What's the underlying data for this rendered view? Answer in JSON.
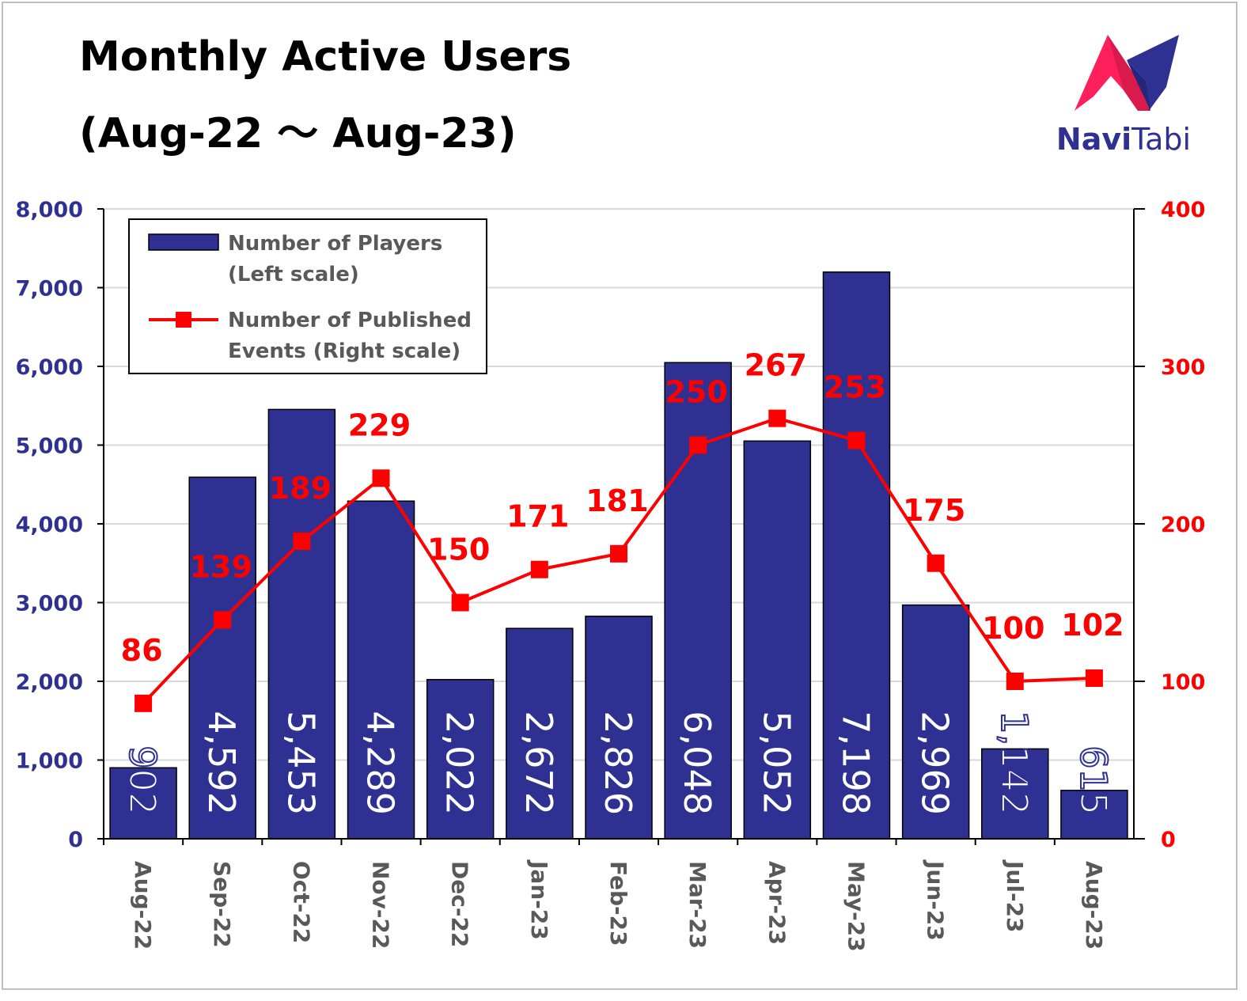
{
  "header": {
    "title_line1": "Monthly Active Users",
    "title_line2": "(Aug-22 ～ Aug-23)"
  },
  "logo": {
    "brand_part1": "Navi",
    "brand_part2": "Tabi",
    "colors": {
      "left": "#ff1f5a",
      "right": "#2e3192"
    }
  },
  "chart_data": {
    "type": "bar",
    "categories": [
      "Aug-22",
      "Sep-22",
      "Oct-22",
      "Nov-22",
      "Dec-22",
      "Jan-23",
      "Feb-23",
      "Mar-23",
      "Apr-23",
      "May-23",
      "Jun-23",
      "Jul-23",
      "Aug-23"
    ],
    "series": [
      {
        "name": "Number of Players (Left scale)",
        "type": "bar",
        "axis": "left",
        "color": "#2e3192",
        "values": [
          902,
          4592,
          5453,
          4289,
          2022,
          2672,
          2826,
          6048,
          5052,
          7198,
          2969,
          1142,
          615
        ],
        "labels": [
          "902",
          "4,592",
          "5,453",
          "4,289",
          "2,022",
          "2,672",
          "2,826",
          "6,048",
          "5,052",
          "7,198",
          "2,969",
          "1,142",
          "615"
        ]
      },
      {
        "name": "Number of Published Events (Right scale)",
        "type": "line",
        "axis": "right",
        "color": "#ff0000",
        "values": [
          86,
          139,
          189,
          229,
          150,
          171,
          181,
          250,
          267,
          253,
          175,
          100,
          102
        ]
      }
    ],
    "left_axis": {
      "ylim": [
        0,
        8000
      ],
      "ticks": [
        0,
        1000,
        2000,
        3000,
        4000,
        5000,
        6000,
        7000,
        8000
      ],
      "tick_labels": [
        "0",
        "1,000",
        "2,000",
        "3,000",
        "4,000",
        "5,000",
        "6,000",
        "7,000",
        "8,000"
      ]
    },
    "right_axis": {
      "ylim": [
        0,
        400
      ],
      "ticks": [
        0,
        100,
        200,
        300,
        400
      ],
      "tick_labels": [
        "0",
        "100",
        "200",
        "300",
        "400"
      ]
    },
    "grid": true,
    "legend": {
      "position": "top-left",
      "entries": [
        {
          "line1": "Number of Players",
          "line2": "(Left scale)"
        },
        {
          "line1": "Number of Published",
          "line2": "Events (Right scale)"
        }
      ]
    }
  }
}
